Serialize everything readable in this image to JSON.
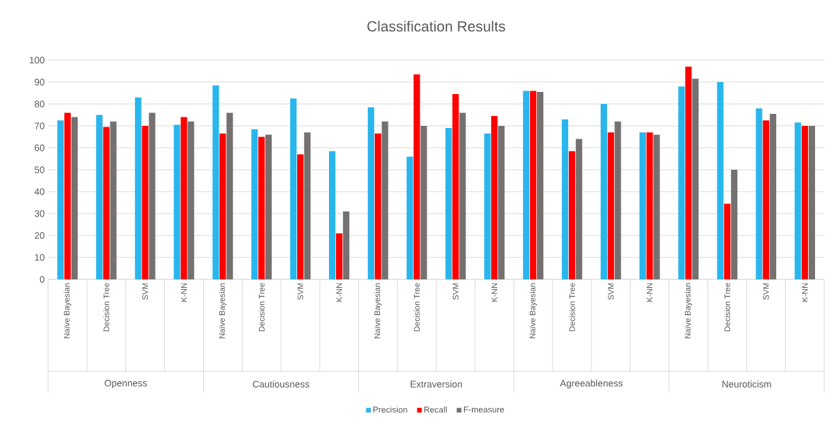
{
  "chart_data": {
    "type": "bar",
    "title": "Classification Results",
    "categories": [
      "Naïve Bayesian",
      "Decision Tree",
      "SVM",
      "K-NN",
      "Naïve Bayesian",
      "Decision Tree",
      "SVM",
      "K-NN",
      "Naïve Bayesian",
      "Decision Tree",
      "SVM",
      "K-NN",
      "Naïve Bayesian",
      "Decision Tree",
      "SVM",
      "K-NN",
      "Naïve Bayesian",
      "Decision Tree",
      "SVM",
      "K-NN"
    ],
    "annotations": [
      "Openness",
      "Cautiousness",
      "Extraversion",
      "Agreeableness",
      "Neuroticism"
    ],
    "series": [
      {
        "name": "Precision",
        "color": "#29b6ec",
        "values": [
          72.5,
          75,
          83,
          70.5,
          88.5,
          68.5,
          82.5,
          58.5,
          78.5,
          56,
          69,
          66.5,
          86,
          73,
          80,
          67,
          88,
          90,
          78,
          71.5
        ]
      },
      {
        "name": "Recall",
        "color": "#ff0000",
        "values": [
          76,
          69.5,
          70,
          74,
          66.5,
          65,
          57,
          21,
          66.5,
          93.5,
          84.5,
          74.5,
          86,
          58.5,
          67,
          67,
          97,
          34.5,
          72.5,
          70
        ]
      },
      {
        "name": "F-measure",
        "color": "#767171",
        "values": [
          74,
          72,
          76,
          72,
          76,
          66,
          67,
          31,
          72,
          70,
          76,
          70,
          85.5,
          64,
          72,
          66,
          91.5,
          50,
          75.5,
          70
        ]
      }
    ],
    "ylim": [
      0,
      100
    ],
    "yticks": [
      0,
      10,
      20,
      30,
      40,
      50,
      60,
      70,
      80,
      90,
      100
    ],
    "grid": "y",
    "legend": "bottom"
  }
}
